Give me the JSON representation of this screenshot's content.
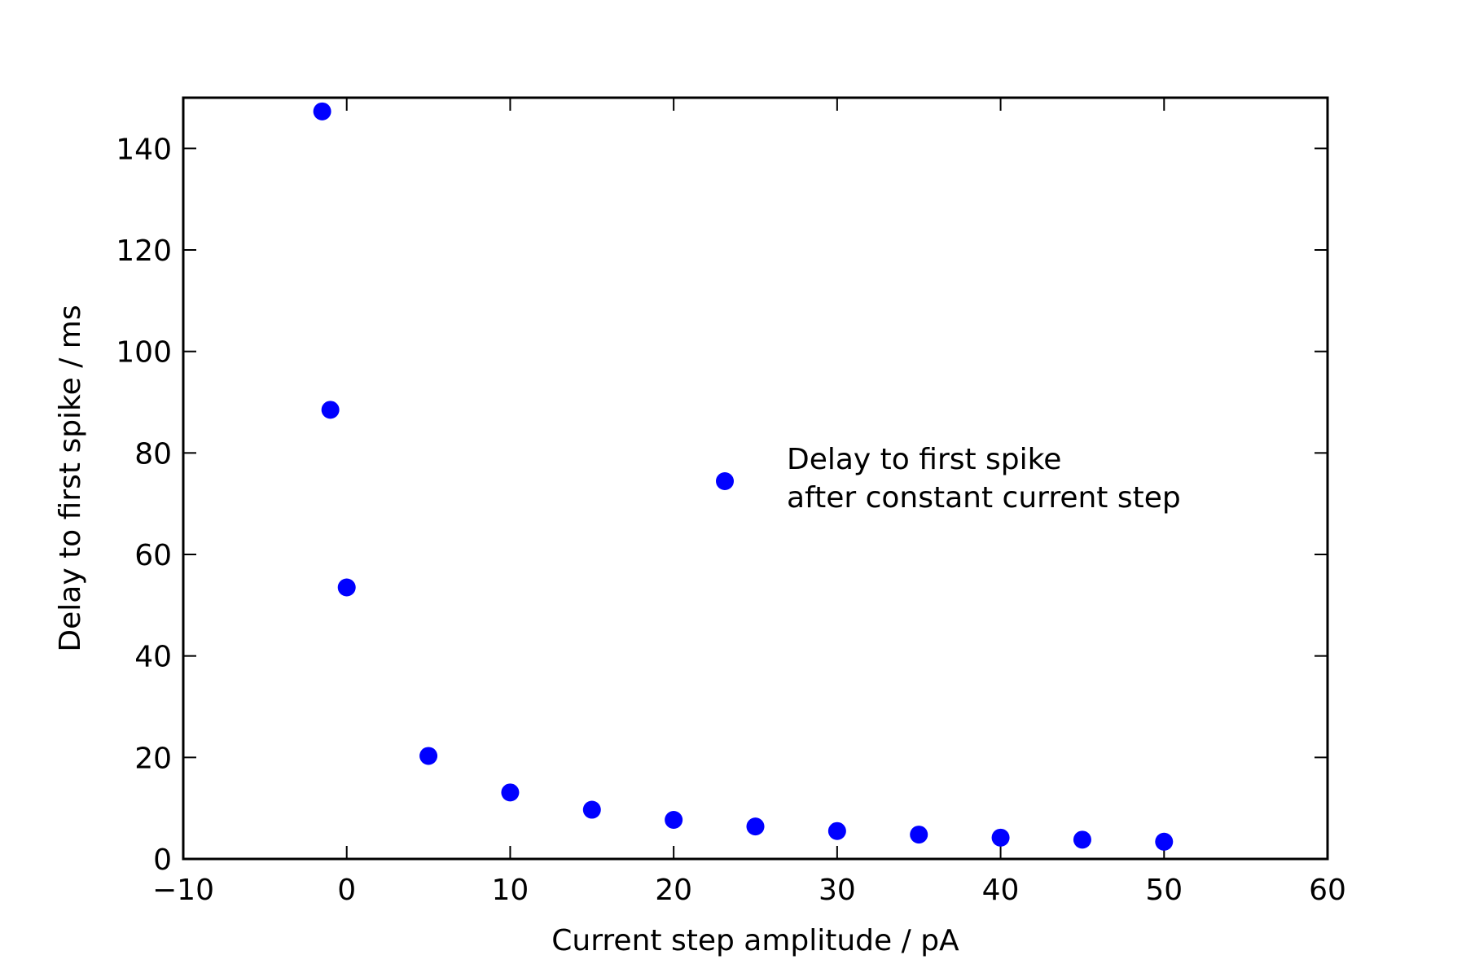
{
  "chart_data": {
    "type": "scatter",
    "title": "",
    "xlabel": "Current step amplitude / pA",
    "ylabel": "Delay to first spike / ms",
    "xlim": [
      -10,
      60
    ],
    "ylim": [
      0,
      150
    ],
    "xticks": [
      -10,
      0,
      10,
      20,
      30,
      40,
      50,
      60
    ],
    "xtick_labels": [
      "−10",
      "0",
      "10",
      "20",
      "30",
      "40",
      "50",
      "60"
    ],
    "yticks": [
      0,
      20,
      40,
      60,
      80,
      100,
      120,
      140
    ],
    "ytick_labels": [
      "0",
      "20",
      "40",
      "60",
      "80",
      "100",
      "120",
      "140"
    ],
    "grid": false,
    "legend_position": "center-right",
    "series": [
      {
        "name_lines": [
          "Delay to first spike",
          "after constant current step"
        ],
        "color": "#0000ff",
        "marker": "circle",
        "points": [
          {
            "x": -1.5,
            "y": 147.3
          },
          {
            "x": -1.0,
            "y": 88.5
          },
          {
            "x": 0.0,
            "y": 53.5
          },
          {
            "x": 5.0,
            "y": 20.3
          },
          {
            "x": 10.0,
            "y": 13.1
          },
          {
            "x": 15.0,
            "y": 9.7
          },
          {
            "x": 20.0,
            "y": 7.7
          },
          {
            "x": 25.0,
            "y": 6.4
          },
          {
            "x": 30.0,
            "y": 5.5
          },
          {
            "x": 35.0,
            "y": 4.8
          },
          {
            "x": 40.0,
            "y": 4.2
          },
          {
            "x": 45.0,
            "y": 3.8
          },
          {
            "x": 50.0,
            "y": 3.4
          }
        ]
      }
    ]
  }
}
